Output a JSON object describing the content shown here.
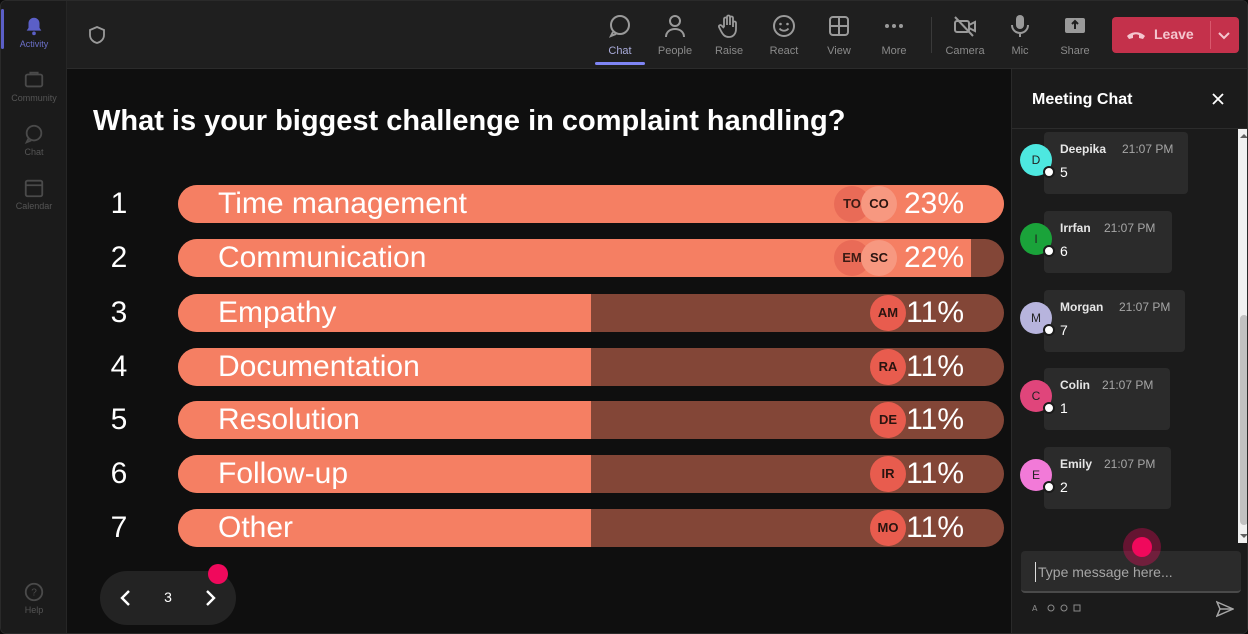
{
  "rail": {
    "items": [
      {
        "label": "Activity",
        "icon": "bell-icon",
        "active": true
      },
      {
        "label": "Community",
        "icon": "community-icon"
      },
      {
        "label": "Chat",
        "icon": "chat-icon"
      },
      {
        "label": "Calendar",
        "icon": "calendar-icon"
      }
    ],
    "help_label": "Help"
  },
  "toolbar": {
    "buttons": [
      {
        "label": "Chat",
        "icon": "chat-icon",
        "active": true
      },
      {
        "label": "People",
        "icon": "people-icon"
      },
      {
        "label": "Raise",
        "icon": "raise-hand-icon"
      },
      {
        "label": "React",
        "icon": "smiley-icon"
      },
      {
        "label": "View",
        "icon": "grid-icon"
      },
      {
        "label": "More",
        "icon": "more-icon"
      },
      {
        "label": "Camera",
        "icon": "camera-off-icon"
      },
      {
        "label": "Mic",
        "icon": "mic-icon"
      },
      {
        "label": "Share",
        "icon": "share-icon"
      }
    ],
    "leave_label": "Leave",
    "leave_color": "#c4314b"
  },
  "poll": {
    "question": "What is your biggest challenge in complaint handling?",
    "options": [
      {
        "num": "1",
        "label": "Time management",
        "percent_label": "23%",
        "fill": 1.0,
        "avatars": [
          "TO",
          "CO"
        ]
      },
      {
        "num": "2",
        "label": "Communication",
        "percent_label": "22%",
        "fill": 0.96,
        "avatars": [
          "EM",
          "SC"
        ]
      },
      {
        "num": "3",
        "label": "Empathy",
        "percent_label": "11%",
        "fill": 0.5,
        "avatars": [
          "AM"
        ]
      },
      {
        "num": "4",
        "label": "Documentation",
        "percent_label": "11%",
        "fill": 0.5,
        "avatars": [
          "RA"
        ]
      },
      {
        "num": "5",
        "label": "Resolution",
        "percent_label": "11%",
        "fill": 0.5,
        "avatars": [
          "DE"
        ]
      },
      {
        "num": "6",
        "label": "Follow-up",
        "percent_label": "11%",
        "fill": 0.5,
        "avatars": [
          "IR"
        ]
      },
      {
        "num": "7",
        "label": "Other",
        "percent_label": "11%",
        "fill": 0.5,
        "avatars": [
          "MO"
        ]
      }
    ],
    "bar_color": "#f57f63",
    "track_color": "#834637",
    "page": "3"
  },
  "chat": {
    "title": "Meeting Chat",
    "messages": [
      {
        "initial": "D",
        "author": "Deepika",
        "time": "21:07 PM",
        "text": "5",
        "color": "#4de8e0"
      },
      {
        "initial": "I",
        "author": "Irrfan",
        "time": "21:07 PM",
        "text": "6",
        "color": "#1aa33a"
      },
      {
        "initial": "M",
        "author": "Morgan",
        "time": "21:07 PM",
        "text": "7",
        "color": "#b7b4dd"
      },
      {
        "initial": "C",
        "author": "Colin",
        "time": "21:07 PM",
        "text": "1",
        "color": "#e0457b"
      },
      {
        "initial": "E",
        "author": "Emily",
        "time": "21:07 PM",
        "text": "2",
        "color": "#f27ad8"
      }
    ],
    "input_placeholder": "Type message here..."
  }
}
